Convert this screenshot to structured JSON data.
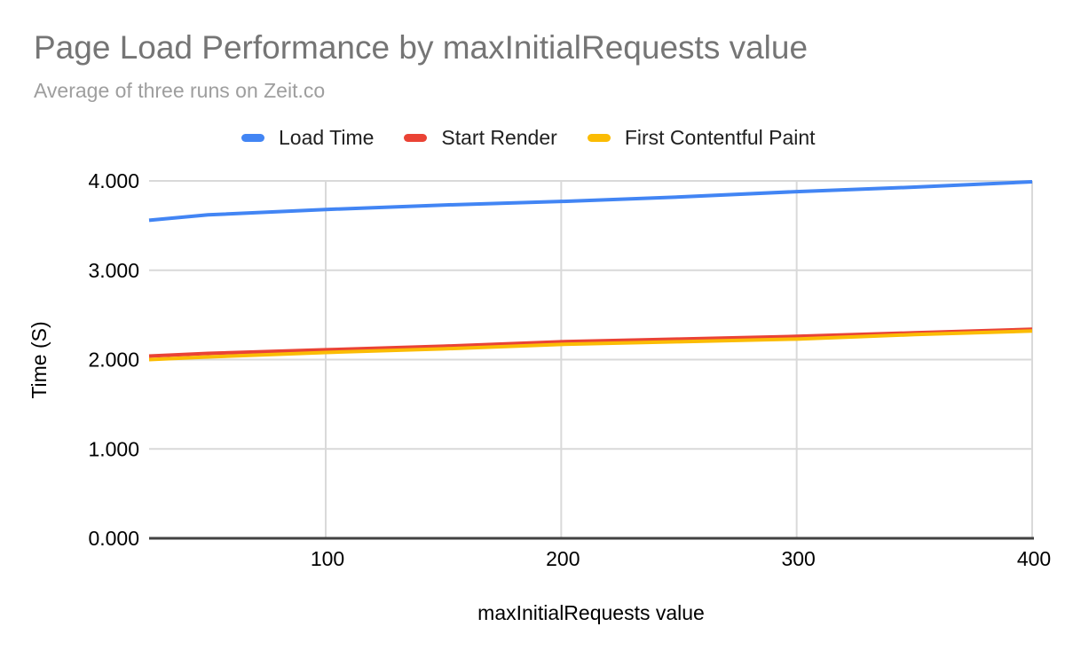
{
  "header": {
    "title": "Page Load Performance by maxInitialRequests value",
    "subtitle": "Average of three runs on Zeit.co"
  },
  "colors": {
    "title_text": "#757575",
    "subtitle_text": "#9e9e9e",
    "tick_text": "#000000",
    "legend_text": "#212121",
    "gridline": "#d9d9d9",
    "axis_line": "#424242",
    "series_blue": "#4285f4",
    "series_red": "#ea4335",
    "series_yellow": "#fbbc04"
  },
  "chart_data": {
    "type": "line",
    "title": "Page Load Performance by maxInitialRequests value",
    "subtitle": "Average of three runs on Zeit.co",
    "xlabel": "maxInitialRequests value",
    "ylabel": "Time (S)",
    "xlim": [
      25,
      400
    ],
    "ylim": [
      0,
      4
    ],
    "grid": true,
    "legend_position": "top",
    "x": [
      25,
      50,
      100,
      150,
      200,
      250,
      300,
      350,
      400
    ],
    "series": [
      {
        "name": "Load Time",
        "color": "#4285f4",
        "values": [
          3.56,
          3.62,
          3.68,
          3.73,
          3.77,
          3.82,
          3.88,
          3.93,
          3.99
        ]
      },
      {
        "name": "Start Render",
        "color": "#ea4335",
        "values": [
          2.04,
          2.07,
          2.11,
          2.15,
          2.2,
          2.23,
          2.26,
          2.3,
          2.34
        ]
      },
      {
        "name": "First Contentful Paint",
        "color": "#fbbc04",
        "values": [
          2.0,
          2.03,
          2.08,
          2.12,
          2.17,
          2.2,
          2.23,
          2.28,
          2.32
        ]
      }
    ],
    "x_ticks": [
      {
        "v": 100,
        "label": "100"
      },
      {
        "v": 200,
        "label": "200"
      },
      {
        "v": 300,
        "label": "300"
      },
      {
        "v": 400,
        "label": "400"
      }
    ],
    "y_ticks": [
      {
        "v": 0,
        "label": "0.000"
      },
      {
        "v": 1,
        "label": "1.000"
      },
      {
        "v": 2,
        "label": "2.000"
      },
      {
        "v": 3,
        "label": "3.000"
      },
      {
        "v": 4,
        "label": "4.000"
      }
    ]
  }
}
